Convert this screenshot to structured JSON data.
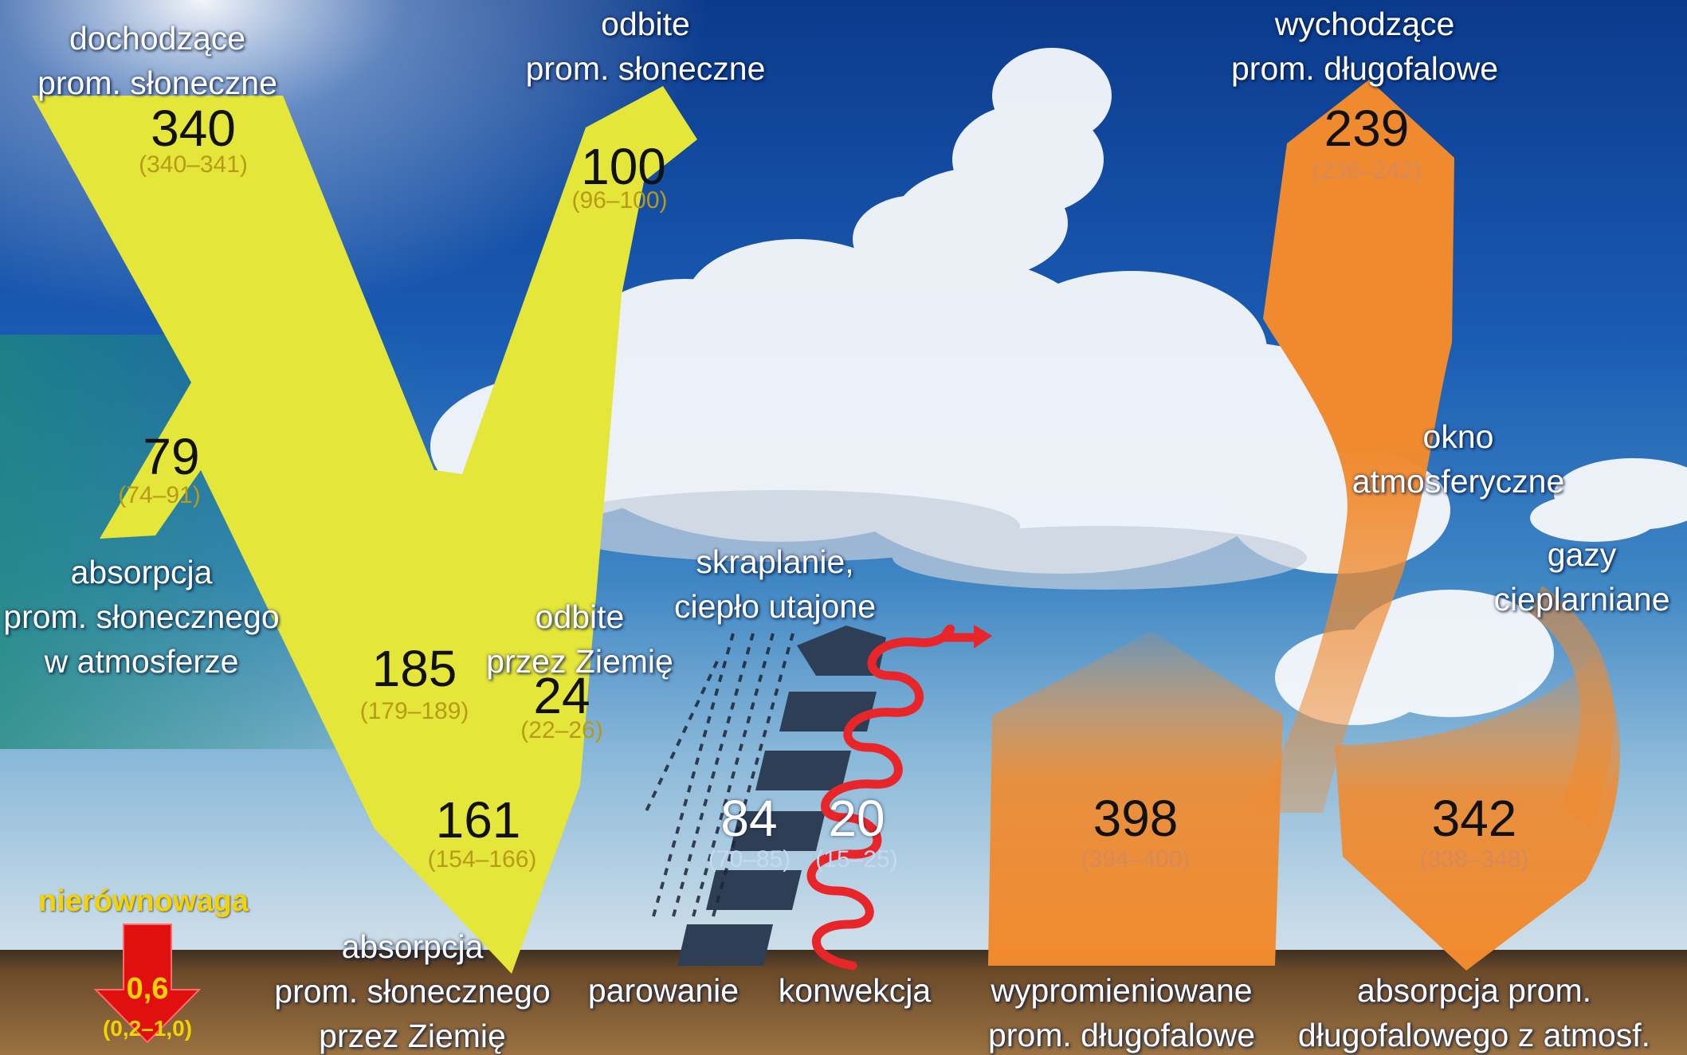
{
  "colors": {
    "solar": "#e5e63a",
    "longwave": "#f08a2e",
    "latent": "#2e3f55",
    "convection": "#e8262a",
    "imbalance": "#f5d300",
    "sky_top": "#0b3a8c",
    "ground": "#6b4a2a"
  },
  "labels": {
    "incoming_solar": [
      "dochodzące",
      "prom. słoneczne"
    ],
    "reflected_solar": [
      "odbite",
      "prom. słoneczne"
    ],
    "outgoing_longwave": [
      "wychodzące",
      "prom. długofalowe"
    ],
    "atmospheric_window": [
      "okno",
      "atmosferyczne"
    ],
    "greenhouse_gases": [
      "gazy",
      "cieplarniane"
    ],
    "absorbed_atmosphere": [
      "absorpcja",
      "prom. słonecznego",
      "w atmosferze"
    ],
    "reflected_surface": [
      "odbite",
      "przez Ziemię"
    ],
    "condensation": [
      "skraplanie,",
      "ciepło utajone"
    ],
    "absorbed_surface": [
      "absorpcja",
      "prom. słonecznego",
      "przez Ziemię"
    ],
    "evaporation": "parowanie",
    "convection": "konwekcja",
    "emitted_longwave": [
      "wypromieniowane",
      "prom. długofalowe"
    ],
    "back_radiation": [
      "absorpcja prom.",
      "długofalowego z atmosf."
    ],
    "imbalance": "nierównowaga"
  },
  "flows": {
    "incoming_solar": {
      "value": "340",
      "range": "(340–341)"
    },
    "reflected_solar": {
      "value": "100",
      "range": "(96–100)"
    },
    "absorbed_atmosphere": {
      "value": "79",
      "range": "(74–91)"
    },
    "absorbed_surface_in": {
      "value": "185",
      "range": "(179–189)"
    },
    "reflected_surface": {
      "value": "24",
      "range": "(22–26)"
    },
    "absorbed_surface": {
      "value": "161",
      "range": "(154–166)"
    },
    "latent_heat": {
      "value": "84",
      "range": "(70–85)"
    },
    "sensible_heat": {
      "value": "20",
      "range": "(15–25)"
    },
    "outgoing_longwave": {
      "value": "239",
      "range": "(236–242)"
    },
    "surface_emission": {
      "value": "398",
      "range": "(394–400)"
    },
    "back_radiation": {
      "value": "342",
      "range": "(338–348)"
    },
    "imbalance": {
      "value": "0,6",
      "range": "(0,2–1,0)"
    }
  }
}
